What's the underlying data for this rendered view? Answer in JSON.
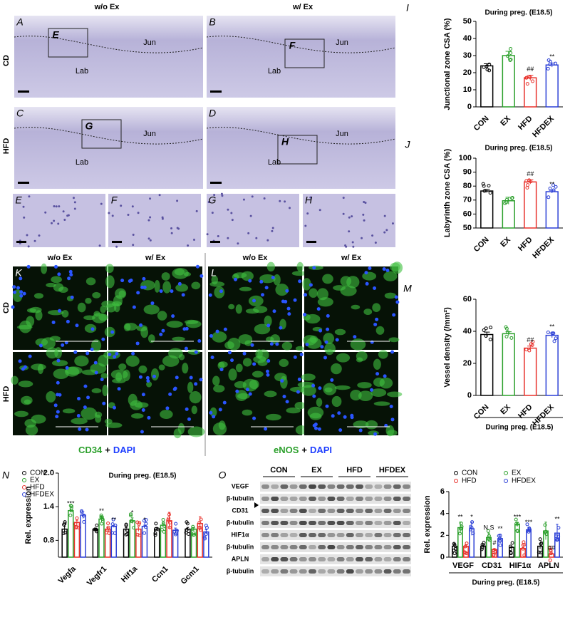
{
  "histology": {
    "column_headers": [
      "w/o Ex",
      "w/ Ex"
    ],
    "row_labels": [
      "CD",
      "HFD"
    ],
    "panels": [
      {
        "letter": "A",
        "inset": "E",
        "labels": [
          "Jun",
          "Lab"
        ]
      },
      {
        "letter": "B",
        "inset": "F",
        "labels": [
          "Jun",
          "Lab"
        ]
      },
      {
        "letter": "C",
        "inset": "G",
        "labels": [
          "Jun",
          "Lab"
        ]
      },
      {
        "letter": "D",
        "inset": "H",
        "labels": [
          "Jun",
          "Lab"
        ]
      }
    ],
    "zoom_letters": [
      "E",
      "F",
      "G",
      "H"
    ]
  },
  "fluorescence": {
    "letters": [
      "K",
      "L"
    ],
    "column_headers": [
      "w/o Ex",
      "w/ Ex",
      "w/o Ex",
      "w/ Ex"
    ],
    "row_labels": [
      "CD",
      "HFD"
    ],
    "stain_labels": [
      {
        "marker": "CD34",
        "plus": "+",
        "dapi": "DAPI"
      },
      {
        "marker": "eNOS",
        "plus": "+",
        "dapi": "DAPI"
      }
    ]
  },
  "blot": {
    "letter": "O",
    "groups": [
      "CON",
      "EX",
      "HFD",
      "HFDEX"
    ],
    "rows": [
      "VEGF",
      "β-tubulin",
      "CD31",
      "β-tubulin",
      "HIF1α",
      "β-tubulin",
      "APLN",
      "β-tubulin"
    ]
  },
  "chart_data": [
    {
      "type": "bar",
      "letter": "I",
      "title": "During preg. (E18.5)",
      "ylabel": "Junctional zone CSA (%)",
      "categories": [
        "CON",
        "EX",
        "HFD",
        "HFDEX"
      ],
      "values": [
        24,
        30,
        17,
        24.5
      ],
      "errors": [
        1.2,
        2.5,
        1.5,
        1.2
      ],
      "colors": [
        "#000000",
        "#2ca02c",
        "#e8302a",
        "#2b3fd6"
      ],
      "ylim": [
        0,
        50
      ],
      "yticks": [
        0,
        10,
        20,
        30,
        40,
        50
      ],
      "annotations": [
        {
          "text": "##",
          "category": "HFD"
        },
        {
          "text": "**",
          "category": "HFDEX"
        }
      ]
    },
    {
      "type": "bar",
      "letter": "J",
      "title": "During preg. (E18.5)",
      "ylabel": "Labyrinth zone CSA (%)",
      "categories": [
        "CON",
        "EX",
        "HFD",
        "HFDEX"
      ],
      "values": [
        76.5,
        69.5,
        83,
        76
      ],
      "errors": [
        1.2,
        2.5,
        1.5,
        1.0
      ],
      "colors": [
        "#000000",
        "#2ca02c",
        "#e8302a",
        "#2b3fd6"
      ],
      "ylim": [
        50,
        100
      ],
      "yticks": [
        50,
        60,
        70,
        80,
        90,
        100
      ],
      "annotations": [
        {
          "text": "##",
          "category": "HFD"
        },
        {
          "text": "**",
          "category": "HFDEX"
        }
      ]
    },
    {
      "type": "bar",
      "letter": "M",
      "ylabel": "Vessel density (/mm²)",
      "xlabel": "During preg. (E18.5)",
      "categories": [
        "CON",
        "EX",
        "HFD",
        "HFDEX"
      ],
      "values": [
        38,
        38.5,
        29.5,
        37.5
      ],
      "errors": [
        1.5,
        1.2,
        1.3,
        1.5
      ],
      "colors": [
        "#000000",
        "#2ca02c",
        "#e8302a",
        "#2b3fd6"
      ],
      "ylim": [
        0,
        60
      ],
      "yticks": [
        0,
        20,
        40,
        60
      ],
      "annotations": [
        {
          "text": "##",
          "category": "HFD"
        },
        {
          "text": "**",
          "category": "HFDEX"
        }
      ]
    },
    {
      "type": "grouped_bar",
      "letter": "N",
      "title": "During preg. (E18.5)",
      "ylabel": "Rel. expression",
      "categories": [
        "Vegfa",
        "Vegfr1",
        "Hif1a",
        "Ccn1",
        "Gcm1"
      ],
      "series": [
        {
          "name": "CON",
          "color": "#000000",
          "values": [
            1.0,
            1.0,
            1.0,
            1.0,
            1.0
          ],
          "errors": [
            0.05,
            0.02,
            0.03,
            0.03,
            0.03
          ]
        },
        {
          "name": "EX",
          "color": "#2ca02c",
          "values": [
            1.33,
            1.18,
            1.15,
            1.07,
            1.0
          ],
          "errors": [
            0.03,
            0.05,
            0.05,
            0.04,
            0.03
          ]
        },
        {
          "name": "HFD",
          "color": "#e8302a",
          "values": [
            1.12,
            1.0,
            1.0,
            1.15,
            1.1
          ],
          "errors": [
            0.04,
            0.03,
            0.04,
            0.15,
            0.12
          ]
        },
        {
          "name": "HFDEX",
          "color": "#2b3fd6",
          "values": [
            1.25,
            1.05,
            1.05,
            0.98,
            0.95
          ],
          "errors": [
            0.06,
            0.02,
            0.02,
            0.04,
            0.04
          ]
        }
      ],
      "ylim": [
        0.5,
        2.0
      ],
      "yticks": [
        0.8,
        1.4,
        {
          "value": 2,
          "label": "2.0"
        }
      ],
      "annotations": [
        {
          "text": "***",
          "category": "Vegfa",
          "series": "EX"
        },
        {
          "text": "**",
          "category": "Vegfr1",
          "series": "EX"
        },
        {
          "text": "**",
          "category": "Vegfr1",
          "series": "HFDEX"
        },
        {
          "text": "*",
          "category": "Hif1a",
          "series": "EX"
        },
        {
          "text": "*",
          "category": "Hif1a",
          "series": "HFDEX"
        }
      ]
    },
    {
      "type": "grouped_bar",
      "ylabel": "Rel. expression",
      "xlabel": "During preg. (E18.5)",
      "categories": [
        "VEGF",
        "CD31",
        "HIF1α",
        "APLN"
      ],
      "series": [
        {
          "name": "CON",
          "color": "#000000",
          "values": [
            1.0,
            1.0,
            0.9,
            1.0
          ],
          "errors": [
            0.2,
            0.1,
            0.05,
            0.25
          ]
        },
        {
          "name": "EX",
          "color": "#2ca02c",
          "values": [
            2.7,
            1.8,
            3.0,
            2.4
          ],
          "errors": [
            0.5,
            0.4,
            0.2,
            0.8
          ]
        },
        {
          "name": "HFD",
          "color": "#e8302a",
          "values": [
            1.0,
            0.7,
            0.8,
            0.3
          ],
          "errors": [
            0.15,
            0.1,
            0.05,
            0.05
          ]
        },
        {
          "name": "HFDEX",
          "color": "#2b3fd6",
          "values": [
            2.6,
            1.7,
            2.5,
            2.2
          ],
          "errors": [
            0.6,
            0.4,
            0.2,
            0.8
          ]
        }
      ],
      "ylim": [
        0,
        6
      ],
      "yticks": [
        0,
        2,
        4,
        6
      ],
      "annotations": [
        {
          "text": "**",
          "category": "VEGF",
          "series": "EX"
        },
        {
          "text": "*",
          "category": "VEGF",
          "series": "HFDEX"
        },
        {
          "text": "N.S",
          "category": "CD31",
          "series": "EX"
        },
        {
          "text": "#",
          "category": "CD31",
          "series": "HFD"
        },
        {
          "text": "**",
          "category": "CD31",
          "series": "HFDEX"
        },
        {
          "text": "***",
          "category": "HIF1α",
          "series": "EX"
        },
        {
          "text": "***",
          "category": "HIF1α",
          "series": "HFDEX"
        },
        {
          "text": "##",
          "category": "APLN",
          "series": "HFD"
        },
        {
          "text": "**",
          "category": "APLN",
          "series": "HFDEX"
        }
      ]
    }
  ]
}
